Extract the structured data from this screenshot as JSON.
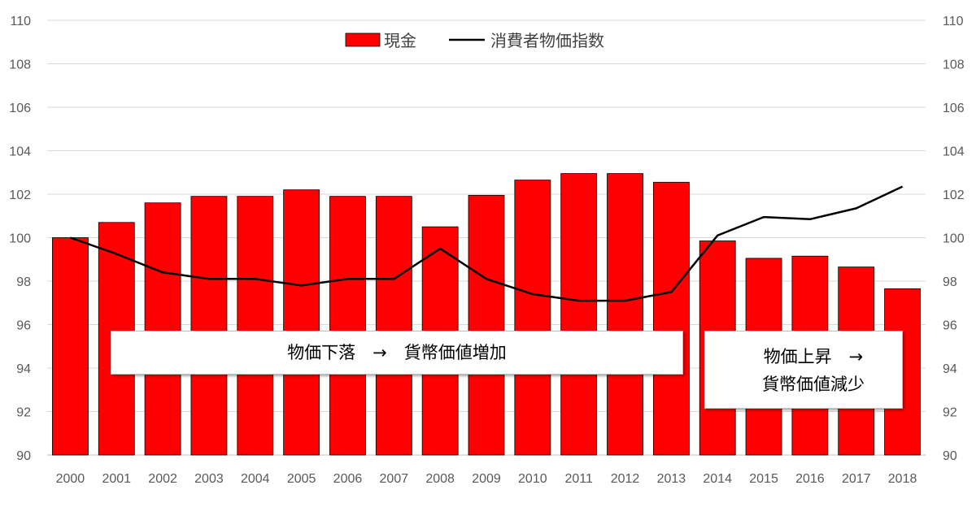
{
  "chart_data": {
    "type": "bar",
    "categories": [
      "2000",
      "2001",
      "2002",
      "2003",
      "2004",
      "2005",
      "2006",
      "2007",
      "2008",
      "2009",
      "2010",
      "2011",
      "2012",
      "2013",
      "2014",
      "2015",
      "2016",
      "2017",
      "2018"
    ],
    "series": [
      {
        "name": "現金",
        "type": "bar",
        "color": "#ff0000",
        "values": [
          100.0,
          100.7,
          101.6,
          101.9,
          101.9,
          102.2,
          101.9,
          101.9,
          100.5,
          101.95,
          102.65,
          102.95,
          102.95,
          102.55,
          99.85,
          99.05,
          99.15,
          98.65,
          97.65
        ]
      },
      {
        "name": "消費者物価指数",
        "type": "line",
        "color": "#000000",
        "values": [
          100.0,
          99.25,
          98.4,
          98.1,
          98.1,
          97.8,
          98.1,
          98.1,
          99.5,
          98.1,
          97.4,
          97.1,
          97.1,
          97.5,
          100.1,
          100.95,
          100.85,
          101.35,
          102.35
        ]
      }
    ],
    "ylim": [
      90,
      110
    ],
    "yticks": [
      90,
      92,
      94,
      96,
      98,
      100,
      102,
      104,
      106,
      108,
      110
    ],
    "secondary_ylim": [
      90,
      110
    ],
    "grid": true,
    "legend_position": "top-center",
    "annotations": [
      "物価下落　→　貨幣価値増加",
      "物価上昇　→",
      "貨幣価値減少"
    ]
  }
}
